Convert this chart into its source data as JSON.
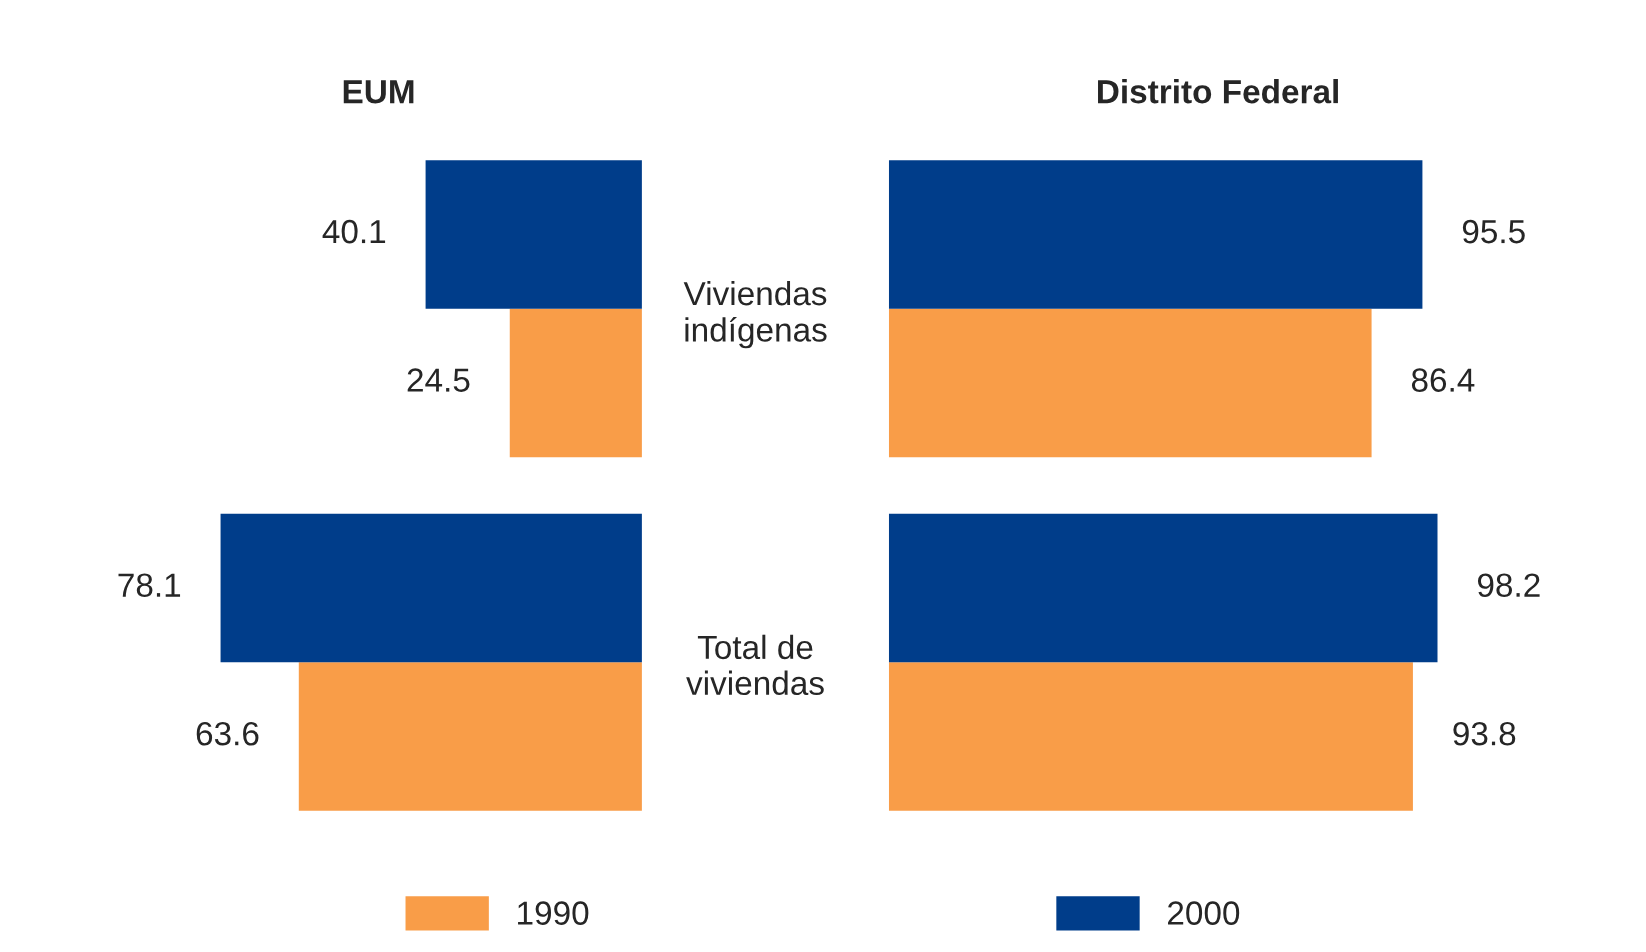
{
  "chart_data": [
    {
      "type": "bar",
      "orientation": "horizontal",
      "title": "EUM",
      "categories": [
        null,
        null
      ],
      "series": [
        {
          "name": "1990",
          "color": "#f99d48",
          "values": [
            24.5,
            63.6
          ]
        },
        {
          "name": "2000",
          "color": "#003d8a",
          "values": [
            40.1,
            78.1
          ]
        }
      ],
      "data_labels": true,
      "legend": "bottom",
      "tick_labels": false
    },
    {
      "type": "bar",
      "orientation": "horizontal",
      "title": "Distrito Federal",
      "categories": [
        "Viviendas\nindígenas",
        "Total de\nviviendas"
      ],
      "series": [
        {
          "name": "1990",
          "color": "#f99d48",
          "values": [
            86.4,
            93.8
          ]
        },
        {
          "name": "2000",
          "color": "#003d8a",
          "values": [
            95.5,
            98.2
          ]
        }
      ],
      "data_labels": true,
      "tick_labels": "y"
    }
  ]
}
